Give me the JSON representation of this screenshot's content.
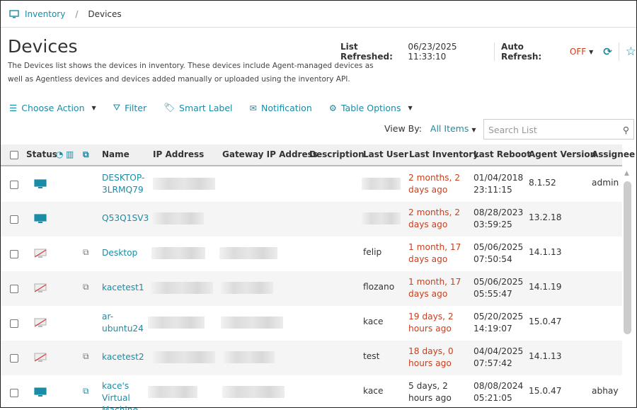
{
  "breadcrumb": {
    "root": "Inventory",
    "current": "Devices"
  },
  "page": {
    "title": "Devices",
    "description": "The Devices list shows the devices in inventory. These devices include Agent-managed devices as well as Agentless devices and devices added manually or uploaded using the inventory API."
  },
  "refresh": {
    "label": "List Refreshed:",
    "value": "06/23/2025 11:33:10",
    "auto_label": "Auto Refresh:",
    "auto_value": "OFF"
  },
  "toolbar": {
    "choose_action": "Choose Action",
    "filter": "Filter",
    "smart_label": "Smart Label",
    "notification": "Notification",
    "table_options": "Table Options"
  },
  "viewby": {
    "label": "View By:",
    "value": "All Items"
  },
  "search": {
    "placeholder": "Search List"
  },
  "columns": [
    "Status",
    "Name",
    "IP Address",
    "Gateway IP Address",
    "Description",
    "Last User",
    "Last Inventory",
    "Last Reboot",
    "Agent Version",
    "Assignee N"
  ],
  "colors": {
    "accent": "#1a8ca6",
    "warning": "#c8401e"
  },
  "rows": [
    {
      "status": "online",
      "agentless": false,
      "name": "DESKTOP-3LRMQ79",
      "last_user": "",
      "last_inventory": "2 months, 2 days ago",
      "inv_stale": true,
      "last_reboot": "01/04/2018 23:11:15",
      "agent_version": "8.1.52",
      "assignee": "admin"
    },
    {
      "status": "online",
      "agentless": false,
      "name": "Q53Q1SV3",
      "last_user": "",
      "last_inventory": "2 months, 2 days ago",
      "inv_stale": true,
      "last_reboot": "08/28/2023 03:59:25",
      "agent_version": "13.2.18",
      "assignee": ""
    },
    {
      "status": "offline",
      "agentless": true,
      "name": "Desktop",
      "last_user": "felip",
      "last_inventory": "1 month, 17 days ago",
      "inv_stale": true,
      "last_reboot": "05/06/2025 07:50:54",
      "agent_version": "14.1.13",
      "assignee": ""
    },
    {
      "status": "offline",
      "agentless": true,
      "name": "kacetest1",
      "last_user": "flozano",
      "last_inventory": "1 month, 17 days ago",
      "inv_stale": true,
      "last_reboot": "05/06/2025 05:55:47",
      "agent_version": "14.1.19",
      "assignee": ""
    },
    {
      "status": "offline",
      "agentless": false,
      "name": "ar-ubuntu24",
      "last_user": "kace",
      "last_inventory": "19 days, 2 hours ago",
      "inv_stale": true,
      "last_reboot": "05/20/2025 14:19:07",
      "agent_version": "15.0.47",
      "assignee": ""
    },
    {
      "status": "offline",
      "agentless": true,
      "name": "kacetest2",
      "last_user": "test",
      "last_inventory": "18 days, 0 hours ago",
      "inv_stale": true,
      "last_reboot": "04/04/2025 07:57:42",
      "agent_version": "14.1.13",
      "assignee": ""
    },
    {
      "status": "virtual",
      "agentless": true,
      "name": "kace's Virtual Machine",
      "last_user": "kace",
      "last_inventory": "5 days, 2 hours ago",
      "inv_stale": false,
      "last_reboot": "08/08/2024 05:21:05",
      "agent_version": "15.0.47",
      "assignee": "abhay"
    }
  ]
}
